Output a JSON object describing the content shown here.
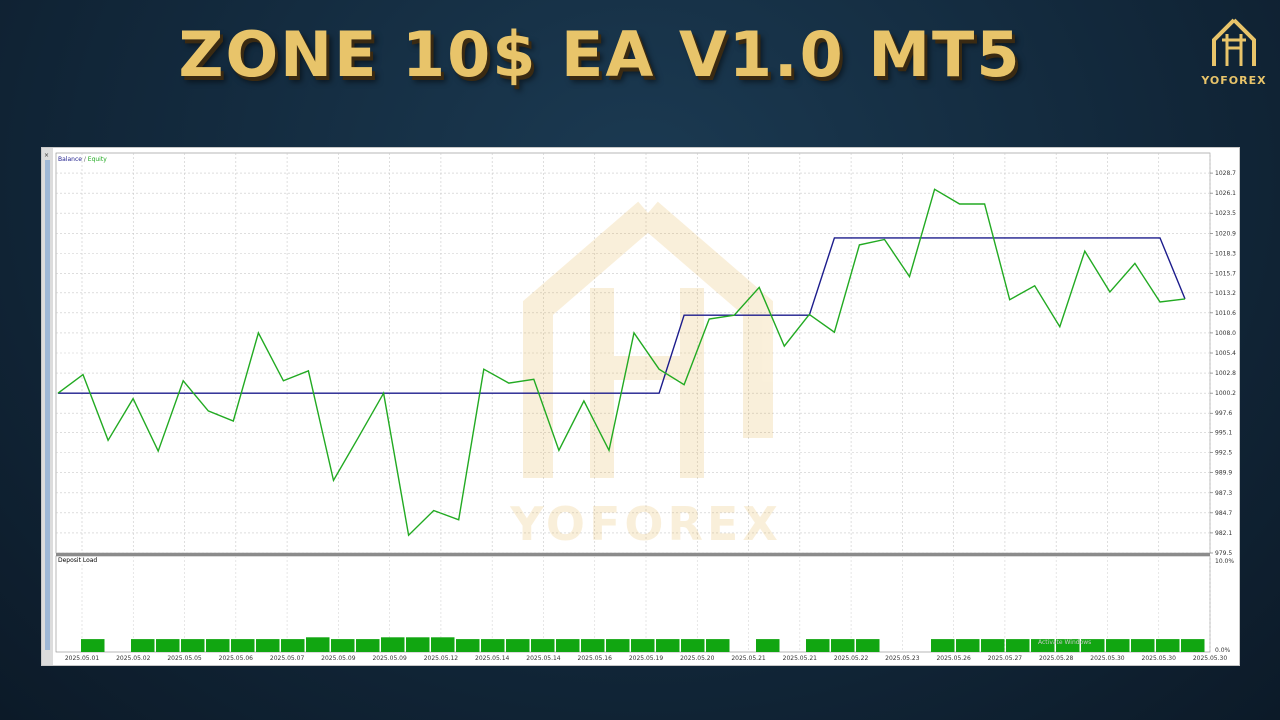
{
  "header": {
    "title": "ZONE 10$ EA V1.0 MT5"
  },
  "brand": {
    "logo_text": "YOFOREX",
    "watermark_text": "YOFOREX",
    "accent_color": "#e8c46a"
  },
  "window": {
    "close_glyph": "×"
  },
  "overlay": {
    "activate_windows": "Activate Windows"
  },
  "chart_data": [
    {
      "type": "line",
      "legend": {
        "balance_label": "Balance",
        "separator": " / ",
        "equity_label": "Equity",
        "placement": "top-left"
      },
      "ylim": [
        979.5,
        1031.3
      ],
      "y_ticks": [
        "1028.7",
        "1026.1",
        "1023.5",
        "1020.9",
        "1018.3",
        "1015.7",
        "1013.2",
        "1010.6",
        "1008.0",
        "1005.4",
        "1002.8",
        "1000.2",
        "997.6",
        "995.1",
        "992.5",
        "989.9",
        "987.3",
        "984.7",
        "982.1",
        "979.5"
      ],
      "x_labels": [
        "2025.05.01",
        "2025.05.02",
        "2025.05.05",
        "2025.05.06",
        "2025.05.07",
        "2025.05.09",
        "2025.05.09",
        "2025.05.12",
        "2025.05.14",
        "2025.05.14",
        "2025.05.16",
        "2025.05.19",
        "2025.05.20",
        "2025.05.21",
        "2025.05.21",
        "2025.05.22",
        "2025.05.23",
        "2025.05.26",
        "2025.05.27",
        "2025.05.28",
        "2025.05.30",
        "2025.05.30",
        "2025.05.30"
      ],
      "grid": true,
      "series": [
        {
          "name": "Balance",
          "color": "#1c1c8c",
          "values": [
            1000.2,
            1000.2,
            1000.2,
            1000.2,
            1000.2,
            1000.2,
            1000.2,
            1000.2,
            1000.2,
            1000.2,
            1000.2,
            1000.2,
            1000.2,
            1000.2,
            1000.2,
            1000.2,
            1000.2,
            1000.2,
            1000.2,
            1000.2,
            1000.2,
            1000.2,
            1000.2,
            1000.2,
            1000.2,
            1010.3,
            1010.3,
            1010.3,
            1010.3,
            1010.3,
            1010.3,
            1020.3,
            1020.3,
            1020.3,
            1020.3,
            1020.3,
            1020.3,
            1020.3,
            1020.3,
            1020.3,
            1020.3,
            1020.3,
            1020.3,
            1020.3,
            1020.3,
            1012.4
          ]
        },
        {
          "name": "Equity",
          "color": "#22aa22",
          "values": [
            1000.2,
            1002.6,
            994.1,
            999.5,
            992.7,
            1001.8,
            997.9,
            996.6,
            1008.0,
            1001.8,
            1003.1,
            988.9,
            994.5,
            1000.2,
            981.8,
            985.0,
            983.8,
            1003.3,
            1001.5,
            1002.0,
            992.8,
            999.2,
            992.8,
            1008.0,
            1003.3,
            1001.3,
            1009.8,
            1010.3,
            1013.9,
            1006.3,
            1010.4,
            1008.1,
            1019.4,
            1020.1,
            1015.3,
            1026.6,
            1024.7,
            1024.7,
            1012.3,
            1014.1,
            1008.8,
            1018.6,
            1013.3,
            1017.0,
            1012.0,
            1012.4
          ]
        }
      ]
    },
    {
      "type": "bar",
      "title": "Deposit Load",
      "ylim": [
        0,
        10
      ],
      "y_ticks": [
        "10.0%",
        "0.0%"
      ],
      "color": "#11a611",
      "values": [
        1.4,
        0,
        1.4,
        1.4,
        1.4,
        1.4,
        1.4,
        1.4,
        1.4,
        1.6,
        1.4,
        1.4,
        1.6,
        1.6,
        1.6,
        1.4,
        1.4,
        1.4,
        1.4,
        1.4,
        1.4,
        1.4,
        1.4,
        1.4,
        1.4,
        1.4,
        0,
        1.4,
        0,
        1.4,
        1.4,
        1.4,
        0,
        0,
        1.4,
        1.4,
        1.4,
        1.4,
        1.4,
        1.4,
        1.4,
        1.4,
        1.4,
        1.4,
        1.4
      ]
    }
  ]
}
